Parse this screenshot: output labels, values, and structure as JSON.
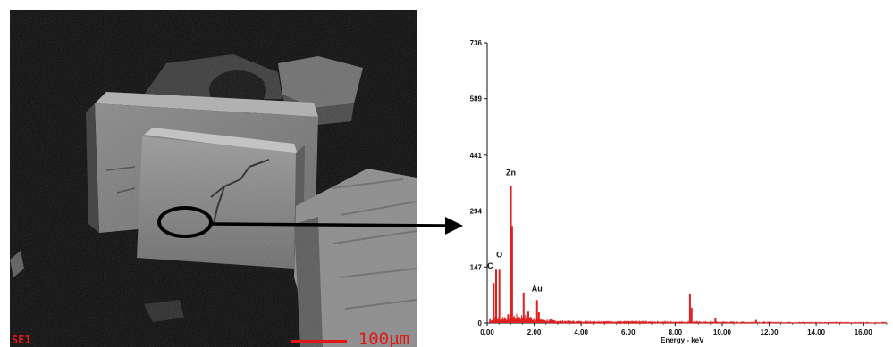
{
  "micrograph": {
    "mode_label": "SE1",
    "scale_label": "100µm",
    "scale_color": "#e01818"
  },
  "chart_data": {
    "type": "line",
    "xlabel": "Energy - keV",
    "ylabel": "",
    "xlim": [
      0,
      17
    ],
    "ylim": [
      0,
      736
    ],
    "x_ticks": [
      "0.00",
      "2.00",
      "4.00",
      "6.00",
      "8.00",
      "10.00",
      "12.00",
      "14.00",
      "16.00"
    ],
    "y_ticks": [
      "0",
      "147",
      "294",
      "441",
      "589",
      "736"
    ],
    "grid": false,
    "color": "#e02020",
    "peaks": [
      {
        "label": "C",
        "x": 0.28,
        "y": 105
      },
      {
        "label": "",
        "x": 0.38,
        "y": 140
      },
      {
        "label": "O",
        "x": 0.52,
        "y": 140
      },
      {
        "label": "",
        "x": 0.9,
        "y": 20
      },
      {
        "label": "Zn",
        "x": 1.01,
        "y": 360
      },
      {
        "label": "",
        "x": 1.06,
        "y": 255
      },
      {
        "label": "",
        "x": 1.55,
        "y": 80
      },
      {
        "label": "",
        "x": 1.75,
        "y": 30
      },
      {
        "label": "Au",
        "x": 2.12,
        "y": 60
      },
      {
        "label": "",
        "x": 2.2,
        "y": 28
      },
      {
        "label": "",
        "x": 8.63,
        "y": 75
      },
      {
        "label": "",
        "x": 8.7,
        "y": 40
      },
      {
        "label": "",
        "x": 9.71,
        "y": 12
      },
      {
        "label": "",
        "x": 11.44,
        "y": 8
      }
    ],
    "annotations": [
      "C",
      "O",
      "Zn",
      "Au"
    ]
  }
}
